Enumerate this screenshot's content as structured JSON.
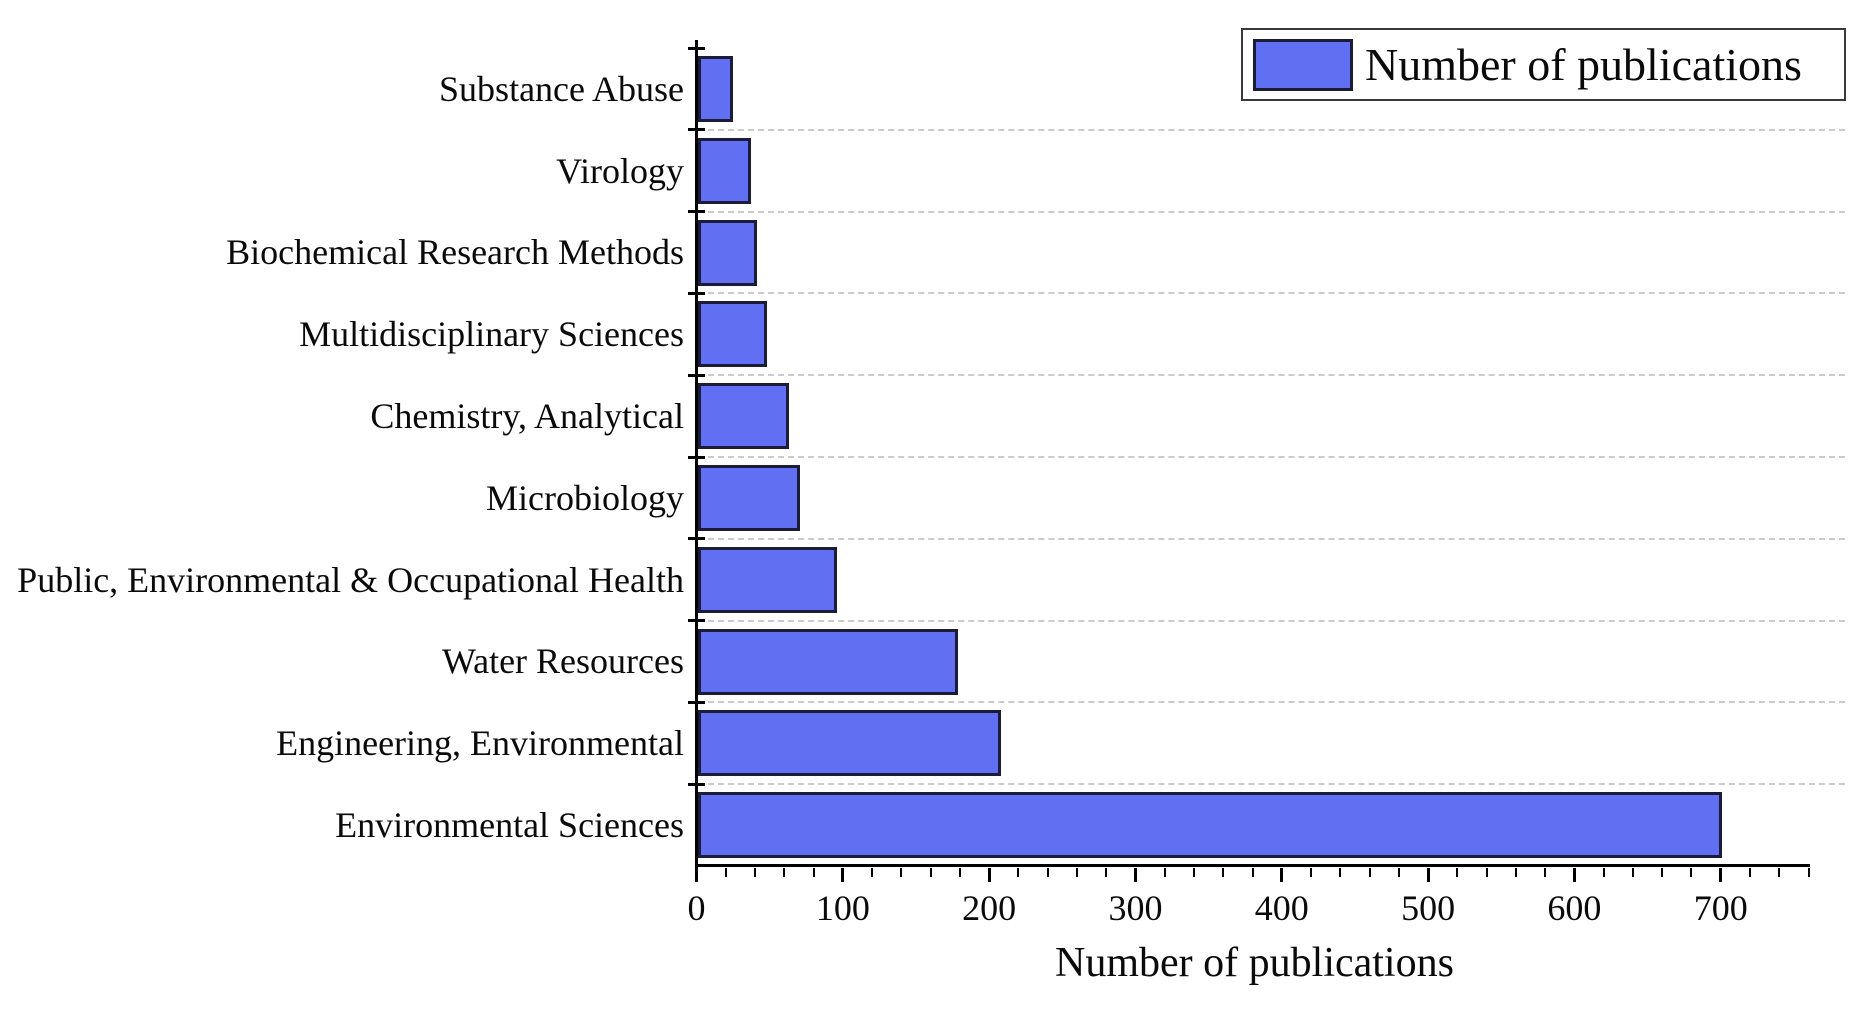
{
  "legend": {
    "label": "Number of publications"
  },
  "axis": {
    "xlabel": "Number of publications"
  },
  "chart_data": {
    "type": "bar",
    "orientation": "horizontal",
    "title": "",
    "xlabel": "Number of publications",
    "ylabel": "",
    "legend_entries": [
      "Number of publications"
    ],
    "legend_position": "top-right",
    "categories": [
      "Substance Abuse",
      "Virology",
      "Biochemical Research Methods",
      "Multidisciplinary Sciences",
      "Chemistry, Analytical",
      "Microbiology",
      "Public, Environmental & Occupational Health",
      "Water Resources",
      "Engineering, Environmental",
      "Environmental Sciences"
    ],
    "values": [
      24,
      36,
      40,
      47,
      62,
      70,
      95,
      178,
      207,
      700
    ],
    "xlim": [
      0,
      760
    ],
    "xticks": [
      0,
      100,
      200,
      300,
      400,
      500,
      600,
      700
    ],
    "minor_tick_step": 20,
    "grid": "horizontal-dashed",
    "colors": {
      "bar_fill": "#6170f2",
      "bar_border": "#1c1c38",
      "grid": "#cbcbcb",
      "axis": "#000000",
      "text": "#0a0a0a"
    }
  }
}
